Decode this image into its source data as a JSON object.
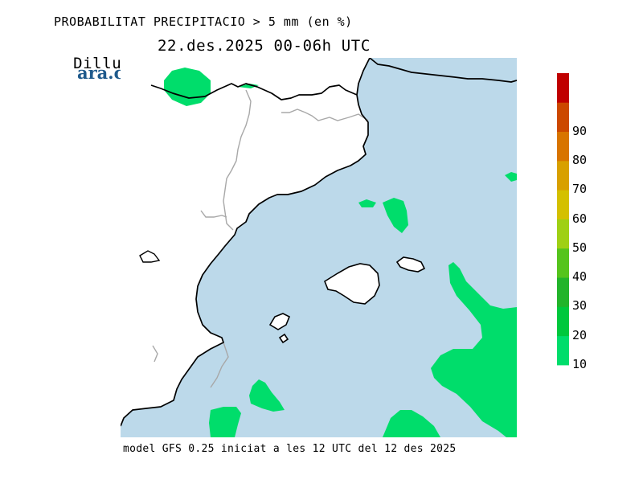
{
  "header": {
    "title": "PROBABILITAT PRECIPITACIO > 5 mm (en %)",
    "day": "Dilluns",
    "datetime": "22.des.2025 00-06h UTC"
  },
  "logo": {
    "text": "ara.cat"
  },
  "footer": {
    "text": "model GFS 0.25 iniciat a les 12 UTC del 12 des 2025"
  },
  "colors": {
    "sea": "#bcd9ea",
    "land": "#ffffff",
    "coast": "#000000",
    "border": "#a8a8a8",
    "precip": "#00dd6b"
  },
  "legend": {
    "bins": [
      {
        "value": "10",
        "color": "#00dd6b"
      },
      {
        "value": "20",
        "color": "#00c83c"
      },
      {
        "value": "30",
        "color": "#22b42a"
      },
      {
        "value": "40",
        "color": "#55c41c"
      },
      {
        "value": "50",
        "color": "#9fd014"
      },
      {
        "value": "60",
        "color": "#d4c000"
      },
      {
        "value": "70",
        "color": "#d8a000"
      },
      {
        "value": "80",
        "color": "#d87400"
      },
      {
        "value": "90",
        "color": "#cc4800"
      },
      {
        "value": "",
        "color": "#c00000"
      }
    ]
  }
}
